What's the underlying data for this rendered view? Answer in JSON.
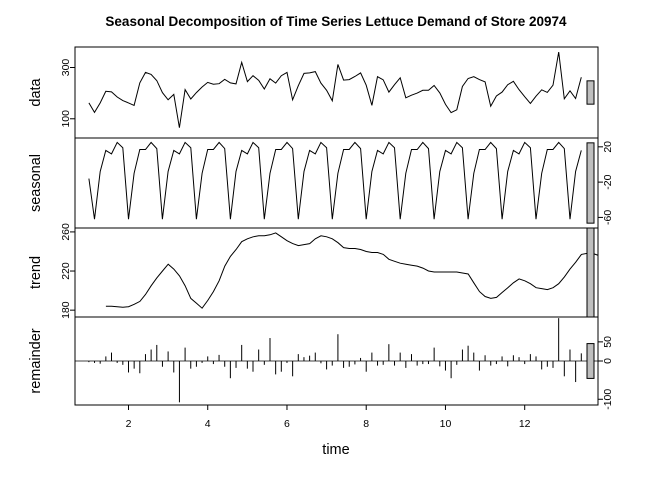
{
  "chart_data": {
    "type": "line",
    "title": "Seasonal Decomposition of Time Series Lettuce Demand of Store 20974",
    "xlabel": "time",
    "xlim": [
      0.65,
      13.85
    ],
    "x_start": 1,
    "x_step": 0.14285714,
    "x_ticks": [
      2,
      4,
      6,
      8,
      10,
      12
    ],
    "panels": [
      {
        "name": "data",
        "ylabel": "data",
        "ylim": [
          25,
          380
        ],
        "y_ticks": [
          100,
          300
        ],
        "tick_side": "left",
        "style": "line",
        "values": [
          162,
          125,
          162,
          207,
          205,
          185,
          171,
          162,
          152,
          240,
          281,
          273,
          249,
          202,
          174,
          195,
          65,
          214,
          177,
          202,
          224,
          242,
          235,
          237,
          254,
          240,
          236,
          320,
          245,
          268,
          250,
          216,
          256,
          239,
          268,
          281,
          174,
          229,
          277,
          279,
          284,
          239,
          211,
          170,
          312,
          251,
          253,
          265,
          279,
          231,
          152,
          264,
          252,
          204,
          233,
          260,
          182,
          192,
          200,
          211,
          211,
          230,
          201,
          156,
          124,
          135,
          226,
          257,
          264,
          253,
          244,
          149,
          189,
          204,
          233,
          246,
          214,
          186,
          160,
          188,
          213,
          203,
          231,
          360,
          178,
          209,
          179,
          262
        ]
      },
      {
        "name": "seasonal",
        "ylabel": "seasonal",
        "ylim": [
          -72,
          30
        ],
        "y_ticks": [
          -60,
          -20,
          20
        ],
        "tick_side": "right",
        "style": "line",
        "values": [
          -16,
          -62,
          -8,
          16,
          12,
          25,
          19,
          -62,
          -10,
          17,
          17,
          25,
          18,
          -62,
          -8,
          16,
          12,
          25,
          19,
          -62,
          -10,
          17,
          17,
          25,
          18,
          -62,
          -8,
          16,
          12,
          25,
          19,
          -62,
          -10,
          17,
          17,
          25,
          18,
          -62,
          -8,
          16,
          12,
          25,
          19,
          -62,
          -10,
          17,
          17,
          25,
          18,
          -62,
          -8,
          16,
          12,
          25,
          19,
          -62,
          -10,
          17,
          17,
          25,
          18,
          -62,
          -8,
          16,
          12,
          25,
          19,
          -62,
          -10,
          17,
          17,
          25,
          18,
          -62,
          -8,
          16,
          12,
          25,
          19,
          -62,
          -10,
          17,
          17,
          25,
          18,
          -62,
          -8,
          16
        ]
      },
      {
        "name": "trend",
        "ylabel": "trend",
        "ylim": [
          173,
          264
        ],
        "y_ticks": [
          180,
          220,
          260
        ],
        "tick_side": "left",
        "x_start": 1.43,
        "style": "line",
        "values": [
          184,
          184,
          183.5,
          183,
          183.5,
          186,
          189,
          196,
          205,
          213,
          220,
          227,
          222,
          215,
          205,
          192,
          187,
          182,
          190,
          199,
          210,
          225,
          235,
          242,
          250,
          253,
          255,
          256,
          256,
          257,
          259,
          255,
          251,
          248,
          246,
          247,
          248,
          253,
          256,
          255,
          253,
          249,
          244,
          243,
          243,
          242,
          240,
          239,
          239,
          237,
          232,
          230,
          228,
          227,
          226,
          225,
          223,
          220,
          219,
          219,
          219,
          219,
          219,
          218,
          217,
          208,
          199,
          194,
          192,
          193,
          198,
          203,
          208,
          212,
          210,
          207,
          203,
          202,
          201,
          203,
          207,
          214,
          222,
          229,
          237,
          238,
          238,
          236
        ]
      },
      {
        "name": "remainder",
        "ylabel": "remainder",
        "ylim": [
          -115,
          115
        ],
        "y_ticks": [
          -100,
          0,
          50
        ],
        "tick_side": "right",
        "style": "hist",
        "values": [
          -3,
          -5,
          -7,
          12,
          22,
          -5,
          -10,
          -30,
          -20,
          -32,
          18,
          30,
          42,
          -15,
          25,
          -30,
          -108,
          35,
          -20,
          -15,
          -5,
          12,
          -8,
          16,
          -15,
          -45,
          -18,
          42,
          -20,
          -28,
          30,
          -10,
          60,
          -35,
          -28,
          -5,
          -40,
          18,
          10,
          14,
          22,
          -6,
          -22,
          -12,
          70,
          -18,
          -15,
          -9,
          8,
          -28,
          22,
          -12,
          -10,
          44,
          -12,
          22,
          -18,
          18,
          -12,
          -8,
          -8,
          35,
          -14,
          -25,
          -45,
          -10,
          30,
          40,
          22,
          -25,
          15,
          -12,
          -8,
          12,
          -14,
          15,
          10,
          -8,
          18,
          12,
          -22,
          -15,
          -18,
          112,
          -40,
          30,
          -55,
          20
        ]
      }
    ]
  }
}
